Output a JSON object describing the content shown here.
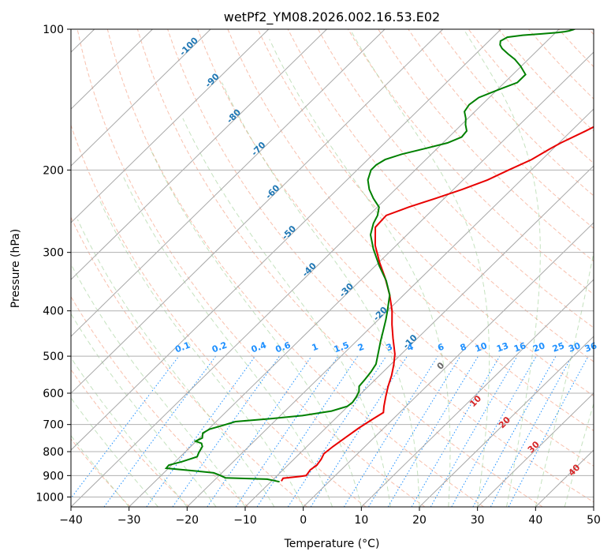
{
  "chart_data": {
    "type": "line",
    "title": "wetPf2_YM08.2026.002.16.53.E02",
    "xlabel": "Temperature (°C)",
    "ylabel": "Pressure (hPa)",
    "xlim": [
      -40,
      50
    ],
    "ylim": [
      1050,
      100
    ],
    "y_scale": "log",
    "x_ticks": [
      -40,
      -30,
      -20,
      -10,
      0,
      10,
      20,
      30,
      40,
      50
    ],
    "y_ticks": [
      100,
      200,
      300,
      400,
      500,
      600,
      700,
      800,
      900,
      1000
    ],
    "x_tick_labels": [
      "−40",
      "−30",
      "−20",
      "−10",
      "0",
      "10",
      "20",
      "30",
      "40",
      "50"
    ],
    "y_tick_labels": [
      "100",
      "200",
      "300",
      "400",
      "500",
      "600",
      "700",
      "800",
      "900",
      "1000"
    ],
    "grid": true,
    "skew": "skew-T log-P",
    "series": [
      {
        "role": "temperature",
        "color": "#e80000",
        "points": [
          [
            -8.3,
            925
          ],
          [
            -8.5,
            912
          ],
          [
            -6.0,
            904
          ],
          [
            -5.0,
            900
          ],
          [
            -5.3,
            875
          ],
          [
            -5.0,
            855
          ],
          [
            -5.3,
            830
          ],
          [
            -5.8,
            808
          ],
          [
            -5.5,
            780
          ],
          [
            -4.9,
            745
          ],
          [
            -4.3,
            712
          ],
          [
            -3.5,
            682
          ],
          [
            -2.8,
            660
          ],
          [
            -3.8,
            640
          ],
          [
            -5.2,
            610
          ],
          [
            -6.6,
            580
          ],
          [
            -7.9,
            550
          ],
          [
            -9.4,
            522
          ],
          [
            -11.1,
            495
          ],
          [
            -14.2,
            458
          ],
          [
            -16.8,
            428
          ],
          [
            -19.2,
            400
          ],
          [
            -22.4,
            370
          ],
          [
            -26.2,
            340
          ],
          [
            -29.9,
            315
          ],
          [
            -33.6,
            290
          ],
          [
            -36.8,
            265
          ],
          [
            -37.0,
            250
          ],
          [
            -34.6,
            240
          ],
          [
            -31.5,
            230
          ],
          [
            -28.5,
            220
          ],
          [
            -25.8,
            210
          ],
          [
            -23.9,
            200
          ],
          [
            -21.8,
            190
          ],
          [
            -20.5,
            180
          ],
          [
            -19.7,
            175
          ],
          [
            -17.5,
            165
          ],
          [
            -16.5,
            160
          ],
          [
            -14.6,
            150
          ],
          [
            -13.9,
            145
          ],
          [
            -12.8,
            140
          ],
          [
            -12.1,
            135
          ],
          [
            -11.4,
            130
          ],
          [
            -10.3,
            125
          ],
          [
            -9.6,
            120
          ],
          [
            -9.4,
            115
          ],
          [
            -8.8,
            110
          ],
          [
            -7.3,
            105
          ],
          [
            -7.1,
            100
          ]
        ]
      },
      {
        "role": "dewpoint",
        "color": "#008000",
        "points": [
          [
            -8.5,
            928
          ],
          [
            -11.1,
            916
          ],
          [
            -18.5,
            910
          ],
          [
            -20.0,
            898
          ],
          [
            -21.4,
            888
          ],
          [
            -24.7,
            880
          ],
          [
            -30.4,
            868
          ],
          [
            -30.5,
            855
          ],
          [
            -28.8,
            840
          ],
          [
            -27.1,
            820
          ],
          [
            -27.5,
            805
          ],
          [
            -28.0,
            780
          ],
          [
            -28.7,
            768
          ],
          [
            -30.1,
            760
          ],
          [
            -29.5,
            748
          ],
          [
            -30.3,
            730
          ],
          [
            -29.8,
            716
          ],
          [
            -28.2,
            703
          ],
          [
            -26.7,
            690
          ],
          [
            -21.1,
            680
          ],
          [
            -16.2,
            670
          ],
          [
            -12.0,
            655
          ],
          [
            -10.1,
            640
          ],
          [
            -9.9,
            628
          ],
          [
            -10.2,
            612
          ],
          [
            -10.7,
            595
          ],
          [
            -11.6,
            580
          ],
          [
            -11.8,
            560
          ],
          [
            -12.1,
            540
          ],
          [
            -12.6,
            520
          ],
          [
            -14.3,
            490
          ],
          [
            -15.8,
            465
          ],
          [
            -17.3,
            440
          ],
          [
            -18.7,
            418
          ],
          [
            -20.0,
            400
          ],
          [
            -22.4,
            370
          ],
          [
            -25.5,
            345
          ],
          [
            -29.4,
            320
          ],
          [
            -33.3,
            295
          ],
          [
            -36.3,
            275
          ],
          [
            -37.8,
            260
          ],
          [
            -38.5,
            250
          ],
          [
            -39.7,
            240
          ],
          [
            -42.2,
            230
          ],
          [
            -44.5,
            220
          ],
          [
            -46.4,
            210
          ],
          [
            -47.6,
            200
          ],
          [
            -47.6,
            195
          ],
          [
            -47.0,
            190
          ],
          [
            -45.1,
            185
          ],
          [
            -42.1,
            180
          ],
          [
            -39.2,
            175
          ],
          [
            -37.8,
            170
          ],
          [
            -38.0,
            165
          ],
          [
            -39.3,
            160
          ],
          [
            -40.4,
            155
          ],
          [
            -41.8,
            150
          ],
          [
            -42.2,
            145
          ],
          [
            -41.8,
            140
          ],
          [
            -39.9,
            135
          ],
          [
            -37.8,
            130
          ],
          [
            -37.8,
            125
          ],
          [
            -40.1,
            120
          ],
          [
            -42.3,
            116
          ],
          [
            -44.4,
            113
          ],
          [
            -46.4,
            110
          ],
          [
            -47.4,
            108
          ],
          [
            -48.0,
            106
          ],
          [
            -47.5,
            104
          ],
          [
            -45.2,
            103
          ],
          [
            -42.2,
            102.3
          ],
          [
            -39.7,
            101.7
          ],
          [
            -38.6,
            101.2
          ],
          [
            -38.0,
            100.8
          ],
          [
            -37.5,
            100.2
          ],
          [
            -37.2,
            99.7
          ]
        ]
      }
    ],
    "background_lines": {
      "isotherms_solid_gray": true,
      "dry_adiabats_dashed_salmon": true,
      "moist_adiabats_dashed_green": true,
      "mixing_ratio_dotted_blue": [
        0.1,
        0.2,
        0.4,
        0.6,
        1,
        1.5,
        2,
        3,
        4,
        6,
        8,
        10,
        13,
        16,
        20,
        25,
        30,
        36
      ],
      "wet_bulb_zero_dashed_tan": true
    },
    "isotherm_labels": {
      "color": "#1f77b4",
      "values": [
        -100,
        -90,
        -80,
        -70,
        -60,
        -50,
        -40,
        -30,
        -20,
        -10
      ],
      "pressures": [
        110,
        130,
        155,
        182,
        225,
        275,
        330,
        365,
        410,
        470
      ]
    },
    "positive_temp_labels": {
      "color": "#d62728",
      "values": [
        0,
        10,
        20,
        30,
        40
      ],
      "pressure_points": [
        [
          24,
          530
        ],
        [
          30,
          630
        ],
        [
          35,
          700
        ],
        [
          40,
          790
        ],
        [
          47,
          885
        ]
      ]
    },
    "mixing_ratio_labels": {
      "color": "#1e90ff",
      "values": [
        "0.1",
        "0.2",
        "0.4",
        "0.6",
        "1",
        "1.5",
        "2",
        "3",
        "4",
        "6",
        "8",
        "10",
        "13",
        "16",
        "20",
        "25",
        "30",
        "36"
      ],
      "pressure": 485
    }
  }
}
